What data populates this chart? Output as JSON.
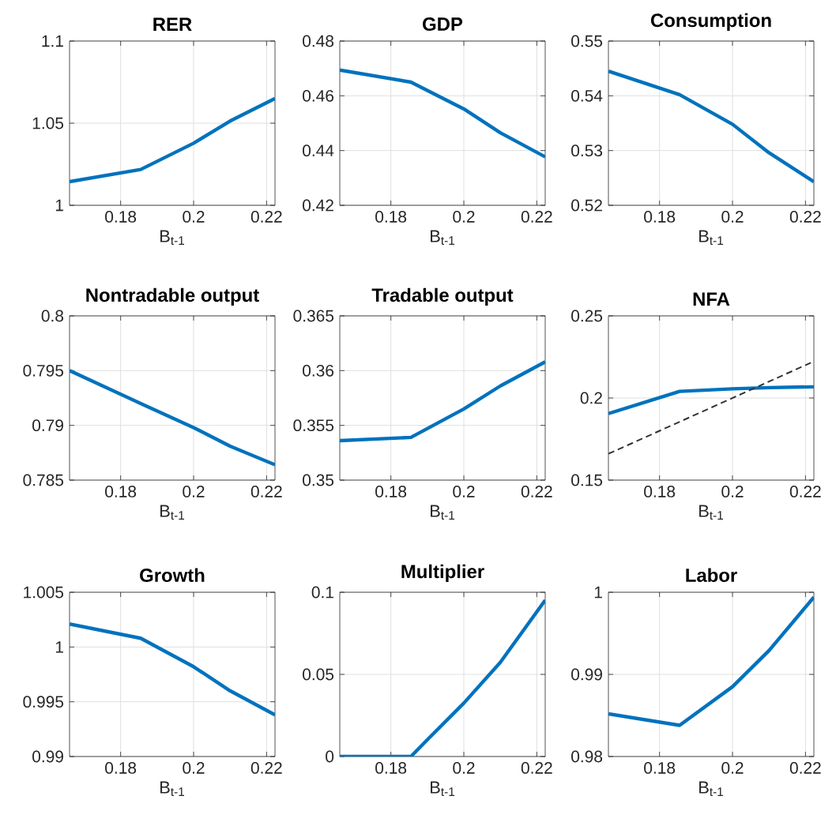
{
  "chart_data": [
    {
      "type": "line",
      "title": "RER",
      "xlabel": "B$_{t-1}$",
      "x": [
        0.166,
        0.1855,
        0.2,
        0.21,
        0.2223
      ],
      "values": [
        1.0144,
        1.0218,
        1.0378,
        1.0513,
        1.065
      ],
      "color": "#0072bd",
      "xlim": [
        0.166,
        0.2223
      ],
      "ylim": [
        1,
        1.1
      ],
      "xticks": [
        0.18,
        0.2,
        0.22
      ],
      "yticks": [
        1,
        1.05,
        1.1
      ],
      "grid": true
    },
    {
      "type": "line",
      "title": "GDP",
      "xlabel": "B$_{t-1}$",
      "x": [
        0.166,
        0.1855,
        0.2,
        0.21,
        0.2223
      ],
      "values": [
        0.4694,
        0.465,
        0.4552,
        0.4465,
        0.4377
      ],
      "color": "#0072bd",
      "xlim": [
        0.166,
        0.2223
      ],
      "ylim": [
        0.42,
        0.48
      ],
      "xticks": [
        0.18,
        0.2,
        0.22
      ],
      "yticks": [
        0.42,
        0.44,
        0.46,
        0.48
      ],
      "grid": true
    },
    {
      "type": "line",
      "title": "Consumption",
      "xlabel": "B$_{t-1}$",
      "x": [
        0.166,
        0.1855,
        0.2,
        0.21,
        0.2223
      ],
      "values": [
        0.5445,
        0.5402,
        0.5348,
        0.5296,
        0.5243
      ],
      "color": "#0072bd",
      "xlim": [
        0.166,
        0.2223
      ],
      "ylim": [
        0.52,
        0.55
      ],
      "xticks": [
        0.18,
        0.2,
        0.22
      ],
      "yticks": [
        0.52,
        0.53,
        0.54,
        0.55
      ],
      "grid": true
    },
    {
      "type": "line",
      "title": "Nontradable output",
      "xlabel": "B$_{t-1}$",
      "x": [
        0.166,
        0.1855,
        0.2,
        0.21,
        0.2223
      ],
      "values": [
        0.795,
        0.792,
        0.7898,
        0.7881,
        0.7864
      ],
      "color": "#0072bd",
      "xlim": [
        0.166,
        0.2223
      ],
      "ylim": [
        0.785,
        0.8
      ],
      "xticks": [
        0.18,
        0.2,
        0.22
      ],
      "yticks": [
        0.785,
        0.79,
        0.795,
        0.8
      ],
      "grid": true
    },
    {
      "type": "line",
      "title": "Tradable output",
      "xlabel": "B$_{t-1}$",
      "x": [
        0.166,
        0.1855,
        0.2,
        0.21,
        0.2223
      ],
      "values": [
        0.3536,
        0.3539,
        0.3565,
        0.3586,
        0.3608
      ],
      "color": "#0072bd",
      "xlim": [
        0.166,
        0.2223
      ],
      "ylim": [
        0.35,
        0.365
      ],
      "xticks": [
        0.18,
        0.2,
        0.22
      ],
      "yticks": [
        0.35,
        0.355,
        0.36,
        0.365
      ],
      "grid": true
    },
    {
      "type": "line",
      "title": "NFA",
      "xlabel": "B$_{t-1}$",
      "x": [
        0.166,
        0.1855,
        0.2,
        0.21,
        0.2223
      ],
      "series": [
        {
          "color": "#0072bd",
          "values": [
            0.1905,
            0.204,
            0.2056,
            0.2063,
            0.2068
          ]
        },
        {
          "color": "#333333",
          "line_style": "dashed",
          "x": [
            0.166,
            0.2223
          ],
          "values": [
            0.166,
            0.2223
          ]
        }
      ],
      "xlim": [
        0.166,
        0.2223
      ],
      "ylim": [
        0.15,
        0.25
      ],
      "xticks": [
        0.18,
        0.2,
        0.22
      ],
      "yticks": [
        0.15,
        0.2,
        0.25
      ],
      "grid": true
    },
    {
      "type": "line",
      "title": "Growth",
      "xlabel": "B$_{t-1}$",
      "x": [
        0.166,
        0.1855,
        0.2,
        0.21,
        0.2223
      ],
      "values": [
        1.0021,
        1.0008,
        0.9982,
        0.996,
        0.9938
      ],
      "color": "#0072bd",
      "xlim": [
        0.166,
        0.2223
      ],
      "ylim": [
        0.99,
        1.005
      ],
      "xticks": [
        0.18,
        0.2,
        0.22
      ],
      "yticks": [
        0.99,
        0.995,
        1,
        1.005
      ],
      "grid": true
    },
    {
      "type": "line",
      "title": "Multiplier",
      "xlabel": "B$_{t-1}$",
      "x": [
        0.166,
        0.1855,
        0.19,
        0.2,
        0.21,
        0.2223
      ],
      "values": [
        0,
        0,
        0.0102,
        0.0325,
        0.0573,
        0.0952
      ],
      "color": "#0072bd",
      "xlim": [
        0.166,
        0.2223
      ],
      "ylim": [
        0,
        0.1
      ],
      "xticks": [
        0.18,
        0.2,
        0.22
      ],
      "yticks": [
        0,
        0.05,
        0.1
      ],
      "grid": true
    },
    {
      "type": "line",
      "title": "Labor",
      "xlabel": "B$_{t-1}$",
      "x": [
        0.166,
        0.1855,
        0.2,
        0.21,
        0.2223
      ],
      "values": [
        0.9852,
        0.9838,
        0.9885,
        0.9929,
        0.9994
      ],
      "color": "#0072bd",
      "xlim": [
        0.166,
        0.2223
      ],
      "ylim": [
        0.98,
        1
      ],
      "xticks": [
        0.18,
        0.2,
        0.22
      ],
      "yticks": [
        0.98,
        0.99,
        1
      ],
      "grid": true
    }
  ]
}
